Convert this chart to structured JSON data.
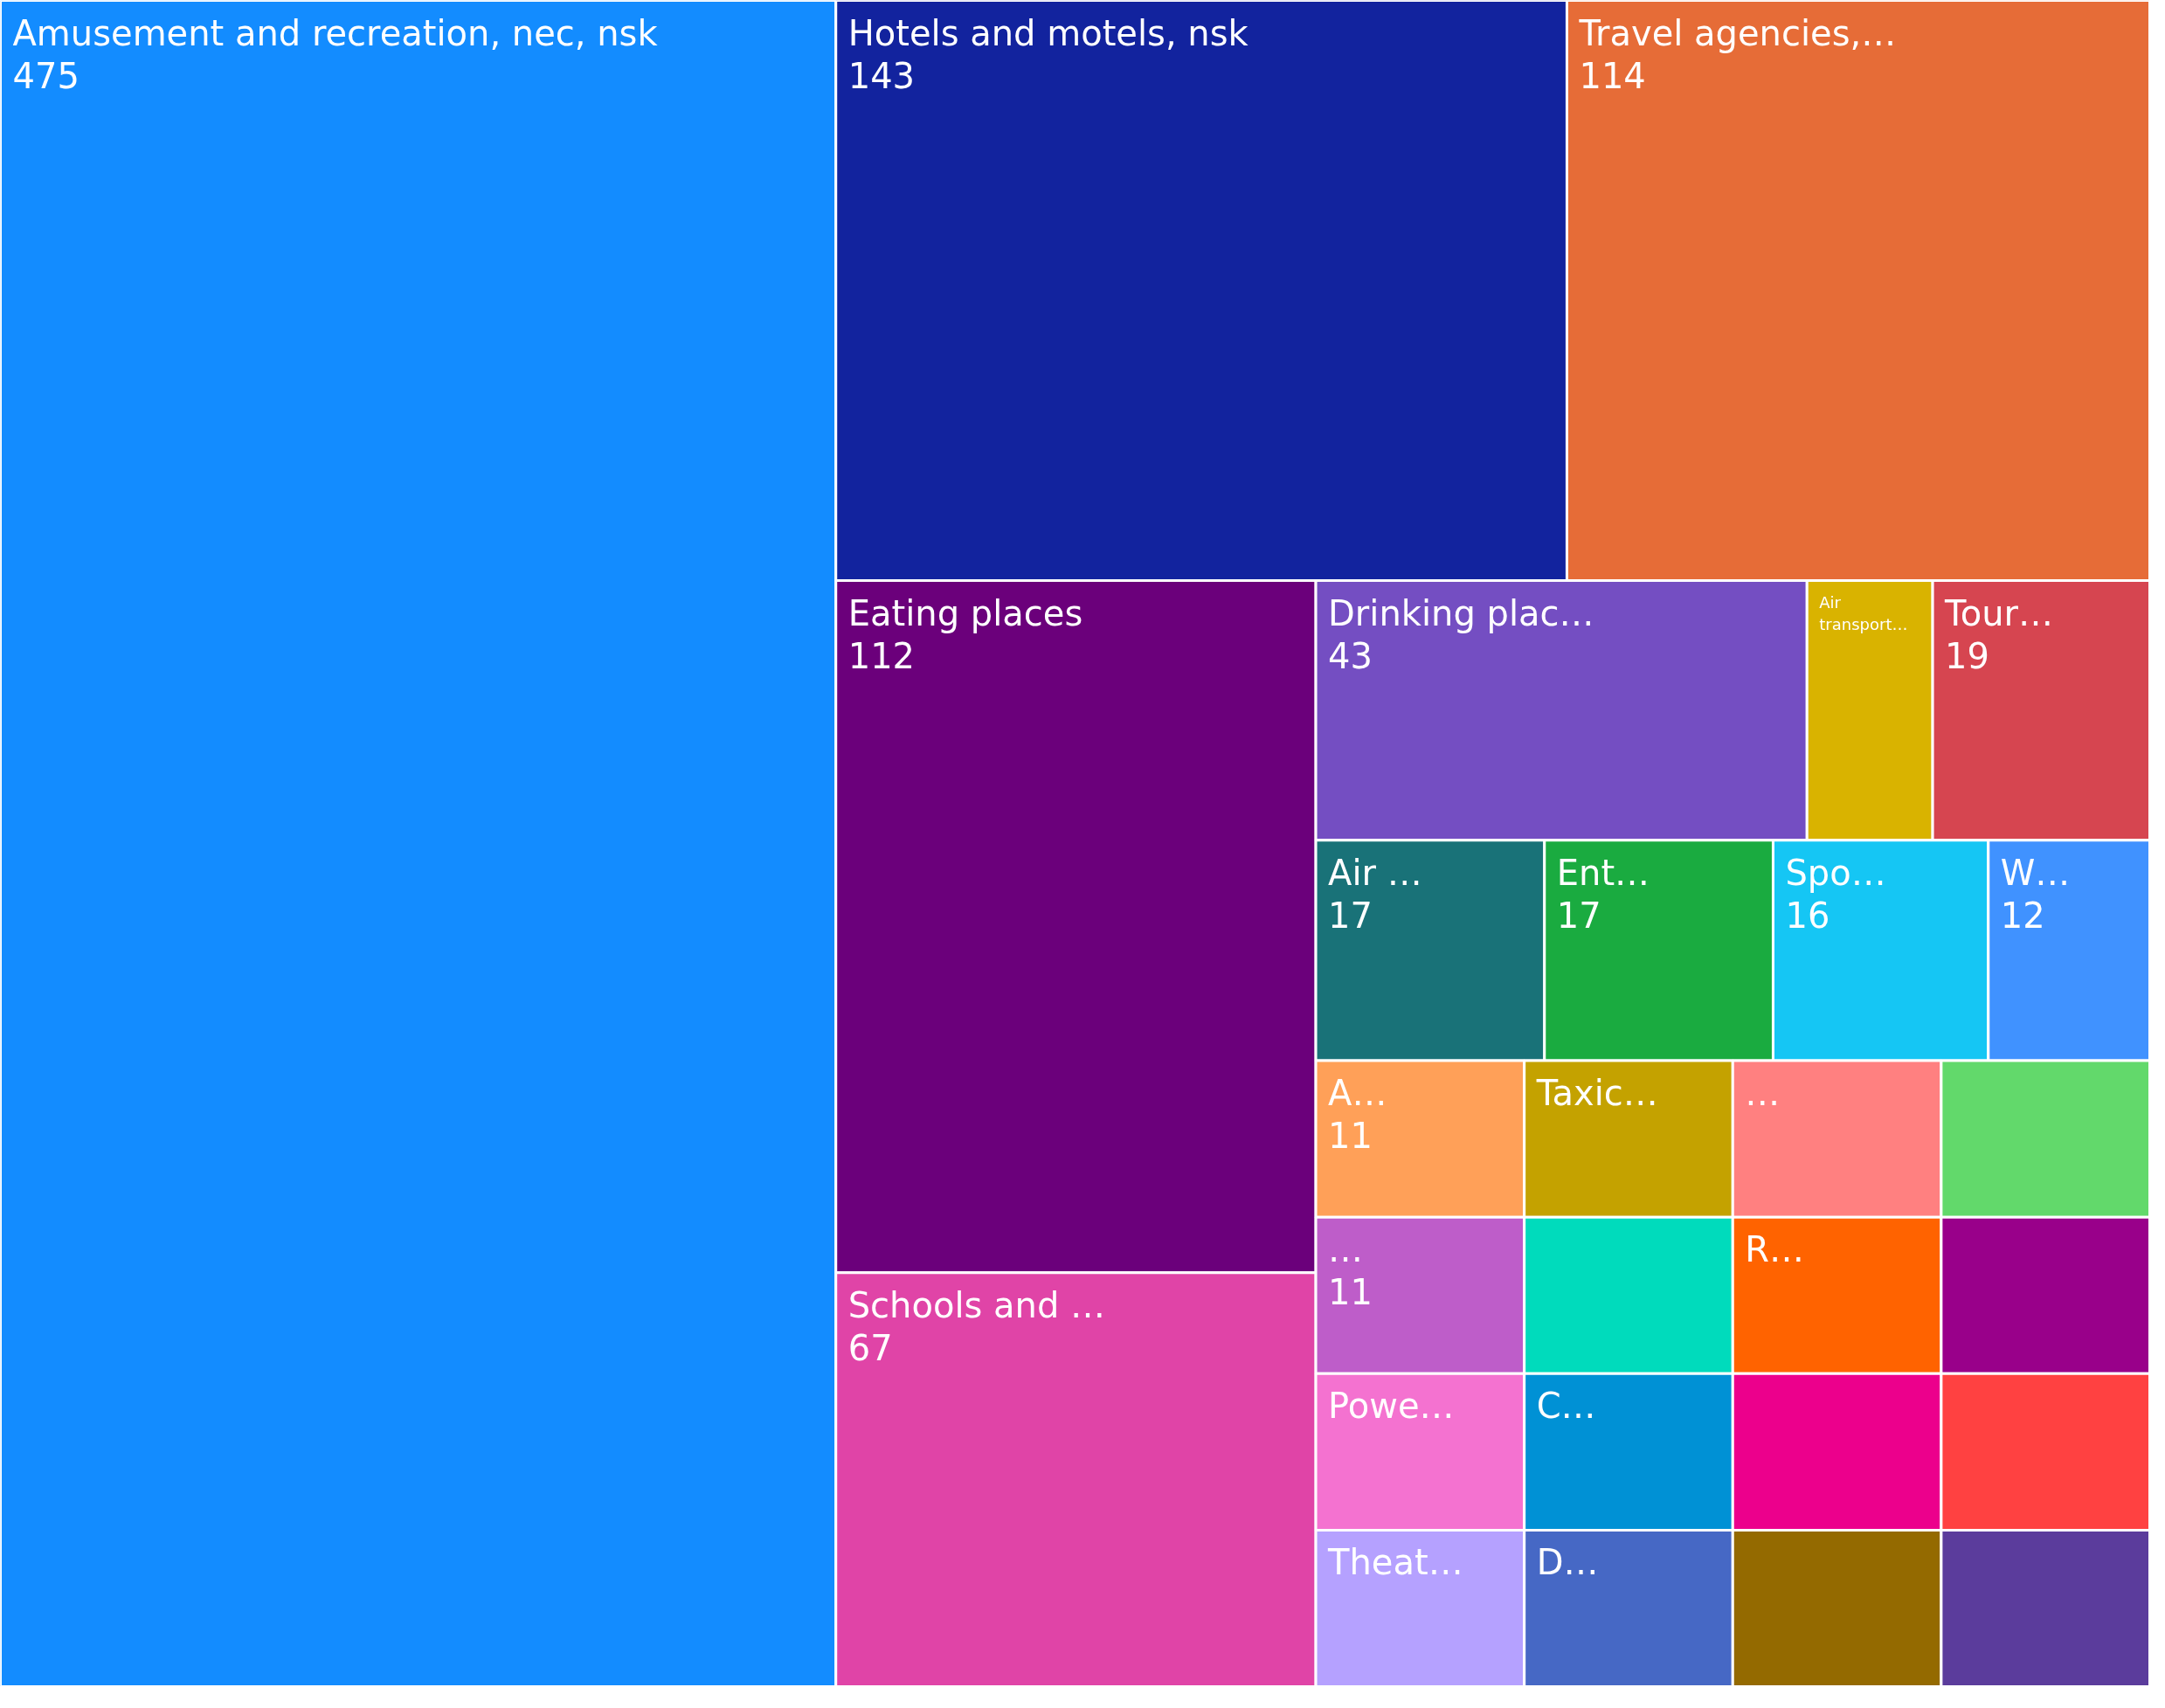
{
  "chart_data": {
    "type": "other",
    "categories": [
      "Amusement and recreation, nec, nsk",
      "Hotels and motels, nsk",
      "Travel agencies,…",
      "Eating places",
      "Schools and …",
      "Drinking plac…",
      "Air transport…",
      "Tour…",
      "Air …",
      "Ent…",
      "Spo…",
      "W…",
      "A…",
      "…",
      "Powe…",
      "Theat…",
      "Taxic…",
      "…",
      null,
      null,
      "C…",
      "D…",
      "R…",
      null,
      null,
      null,
      null,
      null
    ],
    "values": [
      475,
      143,
      114,
      112,
      67,
      43,
      null,
      19,
      17,
      17,
      16,
      12,
      11,
      11,
      null,
      null,
      null,
      null,
      null,
      null,
      null,
      null,
      null,
      null,
      null,
      null,
      null,
      null
    ],
    "value_labels": [
      "475",
      "143",
      "114",
      "112",
      "67",
      "43",
      null,
      "19",
      "17",
      "17",
      "16",
      "12",
      "11",
      "11",
      null,
      null,
      null,
      null,
      null,
      null,
      null,
      null,
      null,
      null,
      null,
      null,
      null,
      null
    ],
    "colors": [
      "#138cff",
      "#12239e",
      "#e66c37",
      "#6b007b",
      "#e044a7",
      "#744ec2",
      "#d9b300",
      "#d64550",
      "#197278",
      "#1aab40",
      "#15c6f4",
      "#4092ff",
      "#ffa058",
      "#be5dc9",
      "#f472d0",
      "#b5a1ff",
      "#c4a200",
      "#ff8080",
      "#62d96b",
      "#00dbbc",
      "#0091d5",
      "#4668c5",
      "#ff6300",
      "#99008a",
      "#ec008c",
      "#946a00",
      "#ff4141",
      "#5b3c9c"
    ]
  }
}
